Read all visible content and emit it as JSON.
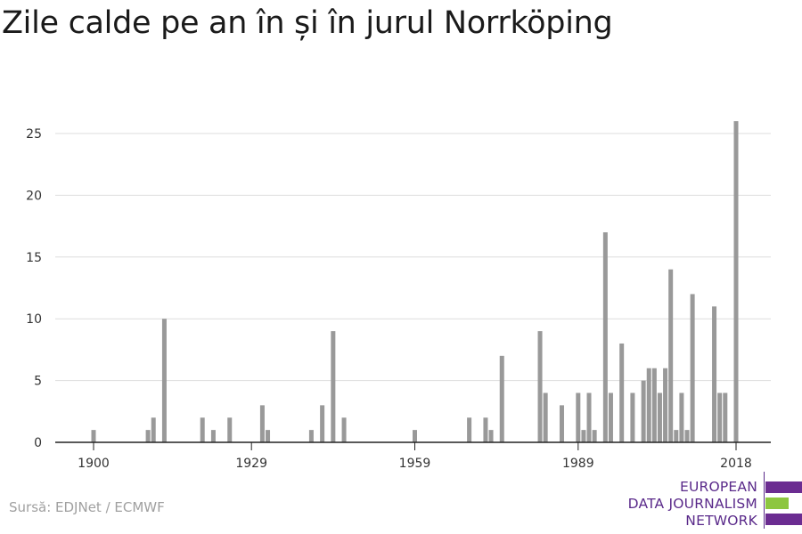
{
  "title": "Zile calde pe an în și în jurul Norrköping",
  "source": "Sursă: EDJNet / ECMWF",
  "logo": {
    "lines": [
      "EUROPEAN",
      "DATA JOURNALISM",
      "NETWORK"
    ],
    "colors": {
      "purple": "#6b2c91",
      "green": "#8dc63f"
    }
  },
  "chart_data": {
    "type": "bar",
    "title": "Zile calde pe an în și în jurul Norrköping",
    "xlabel": "",
    "ylabel": "",
    "xlim": [
      1893,
      2024
    ],
    "ylim": [
      0,
      27
    ],
    "yticks": [
      0,
      5,
      10,
      15,
      20,
      25
    ],
    "xticks": [
      1900,
      1929,
      1959,
      1989,
      2018
    ],
    "grid": true,
    "bar_color": "#999999",
    "points": [
      {
        "x": 1900,
        "y": 1
      },
      {
        "x": 1910,
        "y": 1
      },
      {
        "x": 1911,
        "y": 2
      },
      {
        "x": 1913,
        "y": 10
      },
      {
        "x": 1920,
        "y": 2
      },
      {
        "x": 1922,
        "y": 1
      },
      {
        "x": 1925,
        "y": 2
      },
      {
        "x": 1931,
        "y": 3
      },
      {
        "x": 1932,
        "y": 1
      },
      {
        "x": 1940,
        "y": 1
      },
      {
        "x": 1942,
        "y": 3
      },
      {
        "x": 1944,
        "y": 9
      },
      {
        "x": 1946,
        "y": 2
      },
      {
        "x": 1959,
        "y": 1
      },
      {
        "x": 1969,
        "y": 2
      },
      {
        "x": 1972,
        "y": 2
      },
      {
        "x": 1973,
        "y": 1
      },
      {
        "x": 1975,
        "y": 7
      },
      {
        "x": 1982,
        "y": 9
      },
      {
        "x": 1983,
        "y": 4
      },
      {
        "x": 1986,
        "y": 3
      },
      {
        "x": 1989,
        "y": 4
      },
      {
        "x": 1990,
        "y": 1
      },
      {
        "x": 1991,
        "y": 4
      },
      {
        "x": 1992,
        "y": 1
      },
      {
        "x": 1994,
        "y": 17
      },
      {
        "x": 1995,
        "y": 4
      },
      {
        "x": 1997,
        "y": 8
      },
      {
        "x": 1999,
        "y": 4
      },
      {
        "x": 2001,
        "y": 5
      },
      {
        "x": 2002,
        "y": 6
      },
      {
        "x": 2003,
        "y": 6
      },
      {
        "x": 2004,
        "y": 4
      },
      {
        "x": 2005,
        "y": 6
      },
      {
        "x": 2006,
        "y": 14
      },
      {
        "x": 2007,
        "y": 1
      },
      {
        "x": 2008,
        "y": 4
      },
      {
        "x": 2009,
        "y": 1
      },
      {
        "x": 2010,
        "y": 12
      },
      {
        "x": 2014,
        "y": 11
      },
      {
        "x": 2015,
        "y": 4
      },
      {
        "x": 2016,
        "y": 4
      },
      {
        "x": 2018,
        "y": 26
      }
    ]
  }
}
